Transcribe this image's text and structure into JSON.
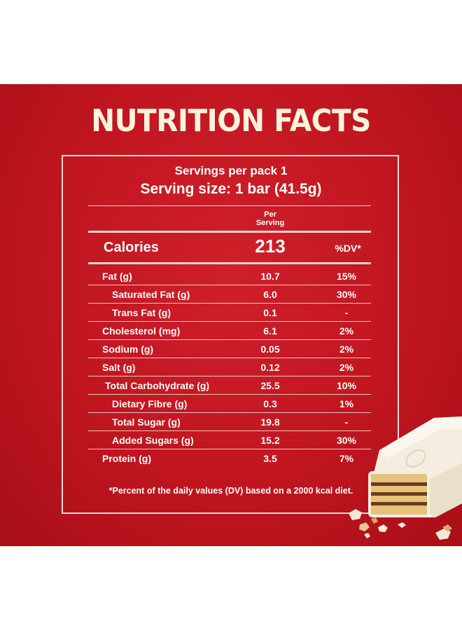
{
  "title": "NUTRITION FACTS",
  "servings_per_pack": "Servings per pack 1",
  "serving_size": "Serving size: 1 bar (41.5g)",
  "per_serving_line1": "Per",
  "per_serving_line2": "Serving",
  "calories": {
    "label": "Calories",
    "value": "213",
    "dv_header": "%DV*"
  },
  "nutrients": [
    {
      "label": "Fat (g)",
      "value": "10.7",
      "dv": "15%"
    },
    {
      "label": "Saturated Fat (g)",
      "value": "6.0",
      "dv": "30%"
    },
    {
      "label": "Trans Fat (g)",
      "value": "0.1",
      "dv": "-"
    },
    {
      "label": "Cholesterol (mg)",
      "value": "6.1",
      "dv": "2%"
    },
    {
      "label": "Sodium (g)",
      "value": "0.05",
      "dv": "2%"
    },
    {
      "label": "Salt (g)",
      "value": "0.12",
      "dv": "2%"
    },
    {
      "label": "Total Carbohydrate (g)",
      "value": "25.5",
      "dv": "10%"
    },
    {
      "label": "Dietary Fibre (g)",
      "value": "0.3",
      "dv": "1%"
    },
    {
      "label": "Total Sugar (g)",
      "value": "19.8",
      "dv": "-"
    },
    {
      "label": "Added Sugars (g)",
      "value": "15.2",
      "dv": "30%"
    },
    {
      "label": "Protein (g)",
      "value": "3.5",
      "dv": "7%"
    }
  ],
  "footnote": "*Percent of the daily values (DV) based on a 2000 kcal diet.",
  "colors": {
    "background_red": "#c0151f",
    "title_cream": "#fbf3dc",
    "line": "#f1d6d6"
  }
}
